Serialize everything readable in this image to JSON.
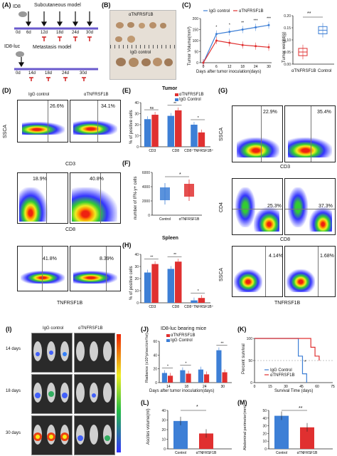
{
  "panelA": {
    "label": "(A)",
    "model1": "ID8",
    "model1_title": "Subcutaneous model",
    "model1_days": [
      "0d",
      "6d",
      "12d",
      "18d",
      "24d",
      "30d"
    ],
    "model2": "ID8-luc",
    "model2_title": "Metastasis model",
    "model2_days": [
      "0d",
      "14d",
      "18d",
      "24d",
      "30d"
    ]
  },
  "panelB": {
    "label": "(B)",
    "top_label": "αTNFRSF1B",
    "bottom_label": "IgG control"
  },
  "panelC": {
    "label": "(C)",
    "legend": [
      "IgG control",
      "αTNFRSF1B"
    ],
    "ylabel": "Tumor Volume(mm³)",
    "xlabel": "Days after tumor inoculation(days)",
    "yticks": [
      "0",
      "50",
      "100",
      "150",
      "200"
    ],
    "xticks": [
      "0",
      "6",
      "12",
      "18",
      "24",
      "30"
    ],
    "sig": [
      "*",
      "*",
      "**",
      "***",
      "***"
    ],
    "box_ylabel": "Tumor weight(g)",
    "box_yticks": [
      "0.00",
      "0.05",
      "0.10",
      "0.15",
      "0.20"
    ],
    "box_xticks": [
      "αTNFRSF1B",
      "Control"
    ],
    "box_sig": "**",
    "colors": {
      "igg": "#3d7fd6",
      "anti": "#e03030"
    }
  },
  "panelD": {
    "label": "(D)",
    "col1": "IgG control",
    "col2": "αTNFRSF1B",
    "row1_pcts": [
      "26.6%",
      "34.1%"
    ],
    "row1_x": "CD3",
    "row2_pcts": [
      "18.9%",
      "40.8%"
    ],
    "row2_x": "CD8",
    "row3_pcts": [
      "41.8%",
      "8.39%"
    ],
    "row3_x": "TNFRSF1B",
    "ylabel": "SSCA"
  },
  "panelE": {
    "label": "(E)",
    "title": "Tumor",
    "legend": [
      "αTNFRSF1B",
      "IgG Control"
    ],
    "ylabel": "% of positive cells",
    "categories": [
      "CD3",
      "CD8",
      "CD8⁺TNFRSF1B⁺"
    ],
    "yticks": [
      "0",
      "10",
      "20",
      "30",
      "40"
    ],
    "sig": [
      "ns",
      "**",
      "*"
    ]
  },
  "panelF": {
    "label": "(F)",
    "ylabel": "number of IFN-γ+ cells",
    "xticks": [
      "Control",
      "αTNFRSF1B"
    ],
    "yticks": [
      "0",
      "2000",
      "4000",
      "6000"
    ],
    "sig": "*"
  },
  "panelG": {
    "label": "(G)",
    "row1_pcts": [
      "22.9%",
      "35.4%"
    ],
    "row1_x": "CD3",
    "row1_y": "SSCA",
    "row2_pcts": [
      "25.3%",
      "37.3%"
    ],
    "row2_x": "CD8",
    "row2_y": "CD4",
    "row3_pcts": [
      "4.14%",
      "1.68%"
    ],
    "row3_x": "TNFRSF1B",
    "row3_y": "SSCA"
  },
  "panelH": {
    "label": "(H)",
    "title": "Spleen",
    "ylabel": "% of positive cells",
    "categories": [
      "CD3",
      "CD8",
      "CD8⁺TNFRSF1B⁺"
    ],
    "yticks": [
      "0",
      "10",
      "20",
      "30",
      "40"
    ],
    "sig": [
      "**",
      "**",
      "*"
    ]
  },
  "panelI": {
    "label": "(I)",
    "col1": "IgG control",
    "col2": "αTNFRSF1B",
    "rows": [
      "14 days",
      "18 days",
      "30 days"
    ]
  },
  "panelJ": {
    "label": "(J)",
    "title": "ID8-luc bearing mice",
    "legend": [
      "αTNFRSF1B",
      "IgG Control"
    ],
    "ylabel": "Radiance (x10⁶p/sec/cm²/sr)",
    "xlabel": "Days after tumor inoculation(days)",
    "categories": [
      "14",
      "18",
      "24",
      "30"
    ],
    "yticks": [
      "0",
      "20",
      "40",
      "60"
    ],
    "sig": [
      "*",
      "*",
      "**"
    ]
  },
  "panelK": {
    "label": "(K)",
    "ylabel": "Percent survival",
    "xlabel": "Survival Time (days)",
    "legend": [
      "IgG Control",
      "αTNFRSF1B"
    ],
    "yticks": [
      "0",
      "50",
      "100"
    ],
    "xticks": [
      "0",
      "15",
      "30",
      "45",
      "60",
      "75"
    ],
    "sig": "*"
  },
  "panelL": {
    "label": "(L)",
    "ylabel": "Ascites volume(ml)",
    "categories": [
      "Control",
      "αTNFRSF1B"
    ],
    "yticks": [
      "0",
      "10",
      "20",
      "30",
      "40"
    ],
    "sig": "*"
  },
  "panelM": {
    "label": "(M)",
    "ylabel": "Abdominal perimeter(mm)",
    "categories": [
      "Control",
      "αTNFRSF1B"
    ],
    "yticks": [
      "0",
      "10",
      "20",
      "30",
      "40",
      "50"
    ],
    "sig": "**"
  },
  "chart_data": [
    {
      "id": "C-line",
      "type": "line",
      "x": [
        0,
        6,
        12,
        18,
        24,
        30
      ],
      "series": [
        {
          "name": "IgG control",
          "values": [
            0,
            130,
            140,
            150,
            160,
            170
          ]
        },
        {
          "name": "αTNFRSF1B",
          "values": [
            0,
            100,
            90,
            80,
            75,
            70
          ]
        }
      ],
      "xlabel": "Days after tumor inoculation(days)",
      "ylabel": "Tumor Volume(mm³)",
      "ylim": [
        0,
        200
      ]
    },
    {
      "id": "C-box",
      "type": "bar",
      "categories": [
        "αTNFRSF1B",
        "Control"
      ],
      "values": [
        0.05,
        0.14
      ],
      "ylabel": "Tumor weight(g)",
      "ylim": [
        0,
        0.2
      ]
    },
    {
      "id": "E",
      "type": "bar",
      "title": "Tumor",
      "categories": [
        "CD3",
        "CD8",
        "CD8⁺TNFRSF1B⁺"
      ],
      "series": [
        {
          "name": "αTNFRSF1B",
          "values": [
            29,
            33,
            13
          ]
        },
        {
          "name": "IgG Control",
          "values": [
            25,
            28,
            20
          ]
        }
      ],
      "ylabel": "% of positive cells",
      "ylim": [
        0,
        40
      ]
    },
    {
      "id": "F",
      "type": "bar",
      "categories": [
        "Control",
        "αTNFRSF1B"
      ],
      "values": [
        3000,
        3500
      ],
      "ylabel": "number of IFN-γ+ cells",
      "ylim": [
        0,
        6000
      ]
    },
    {
      "id": "H",
      "type": "bar",
      "title": "Spleen",
      "categories": [
        "CD3",
        "CD8",
        "CD8⁺TNFRSF1B⁺"
      ],
      "series": [
        {
          "name": "αTNFRSF1B",
          "values": [
            32,
            34,
            4
          ]
        },
        {
          "name": "IgG Control",
          "values": [
            25,
            28,
            2
          ]
        }
      ],
      "ylabel": "% of positive cells",
      "ylim": [
        0,
        40
      ]
    },
    {
      "id": "J",
      "type": "bar",
      "title": "ID8-luc bearing mice",
      "categories": [
        "14",
        "18",
        "24",
        "30"
      ],
      "series": [
        {
          "name": "αTNFRSF1B",
          "values": [
            10,
            13,
            12,
            15
          ]
        },
        {
          "name": "IgG Control",
          "values": [
            14,
            18,
            19,
            47
          ]
        }
      ],
      "ylabel": "Radiance (x10⁶p/sec/cm²/sr)",
      "ylim": [
        0,
        60
      ]
    },
    {
      "id": "K",
      "type": "line",
      "series": [
        {
          "name": "IgG Control",
          "x": [
            0,
            38,
            42,
            46,
            50
          ],
          "values": [
            100,
            100,
            60,
            20,
            0
          ]
        },
        {
          "name": "αTNFRSF1B",
          "x": [
            0,
            50,
            54,
            58,
            62
          ],
          "values": [
            100,
            100,
            80,
            60,
            50
          ]
        }
      ],
      "xlabel": "Survival Time (days)",
      "ylabel": "Percent survival",
      "ylim": [
        0,
        100
      ]
    },
    {
      "id": "L",
      "type": "bar",
      "categories": [
        "Control",
        "αTNFRSF1B"
      ],
      "values": [
        29,
        16
      ],
      "ylabel": "Ascites volume(ml)",
      "ylim": [
        0,
        40
      ]
    },
    {
      "id": "M",
      "type": "bar",
      "categories": [
        "Control",
        "αTNFRSF1B"
      ],
      "values": [
        43,
        28
      ],
      "ylabel": "Abdominal perimeter(mm)",
      "ylim": [
        0,
        50
      ]
    }
  ]
}
